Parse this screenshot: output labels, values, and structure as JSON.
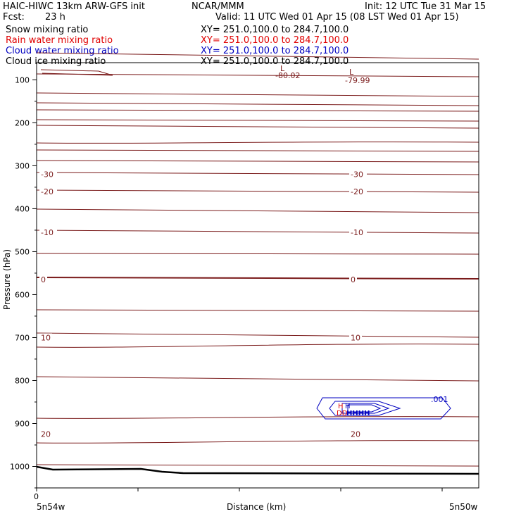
{
  "header": {
    "model": "HAIC-HIWC 13km ARW-GFS init",
    "org": "NCAR/MMM",
    "init": "Init: 12 UTC Tue 31 Mar 15",
    "fcst_label": "Fcst:",
    "fcst_value": "23 h",
    "valid": "Valid: 11 UTC Wed 01 Apr 15 (08 LST Wed 01 Apr 15)"
  },
  "fields": [
    {
      "name": "Snow mixing ratio",
      "xy": "XY= 251.0,100.0 to 284.7,100.0",
      "color": "#000000"
    },
    {
      "name": "Rain water mixing ratio",
      "xy": "XY= 251.0,100.0 to 284.7,100.0",
      "color": "#e00000"
    },
    {
      "name": "Cloud water mixing ratio",
      "xy": "XY= 251.0,100.0 to 284.7,100.0",
      "color": "#0000c0"
    },
    {
      "name": "Cloud ice mixing ratio",
      "xy": "XY= 251.0,100.0 to 284.7,100.0",
      "color": "#000000"
    }
  ],
  "colors": {
    "temperature": "#7a1a1a",
    "cloud_water": "#0000c0",
    "rain": "#e00000",
    "ground": "#000000"
  },
  "chart_data": {
    "type": "contour",
    "xlabel": "Distance (km)",
    "ylabel": "Pressure (hPa)",
    "x_tick_start": "0",
    "x_left": "5n54w",
    "x_right": "5n50w",
    "y_ticks": [
      "100",
      "200",
      "300",
      "400",
      "500",
      "600",
      "700",
      "800",
      "900",
      "1000"
    ],
    "y_tick_values": [
      100,
      200,
      300,
      400,
      500,
      600,
      700,
      800,
      900,
      1000
    ],
    "ylim": [
      1050,
      60
    ],
    "y_scale": "linear",
    "temperature_contour_labels": [
      {
        "text": "-30",
        "pressure": 320
      },
      {
        "text": "-20",
        "pressure": 360
      },
      {
        "text": "-10",
        "pressure": 455
      },
      {
        "text": "0",
        "pressure": 565
      },
      {
        "text": "10",
        "pressure": 700
      },
      {
        "text": "20",
        "pressure": 925
      }
    ],
    "extrema": [
      {
        "symbol": "L",
        "value": "-80.02"
      },
      {
        "symbol": "L",
        "value": "-79.99"
      },
      {
        "symbol": "H",
        "value": ""
      },
      {
        "symbol": "H",
        "value": ""
      }
    ],
    "cloud_water_label": ".001",
    "rain_label": "DD",
    "contour_overlap_text": "HHHH"
  }
}
